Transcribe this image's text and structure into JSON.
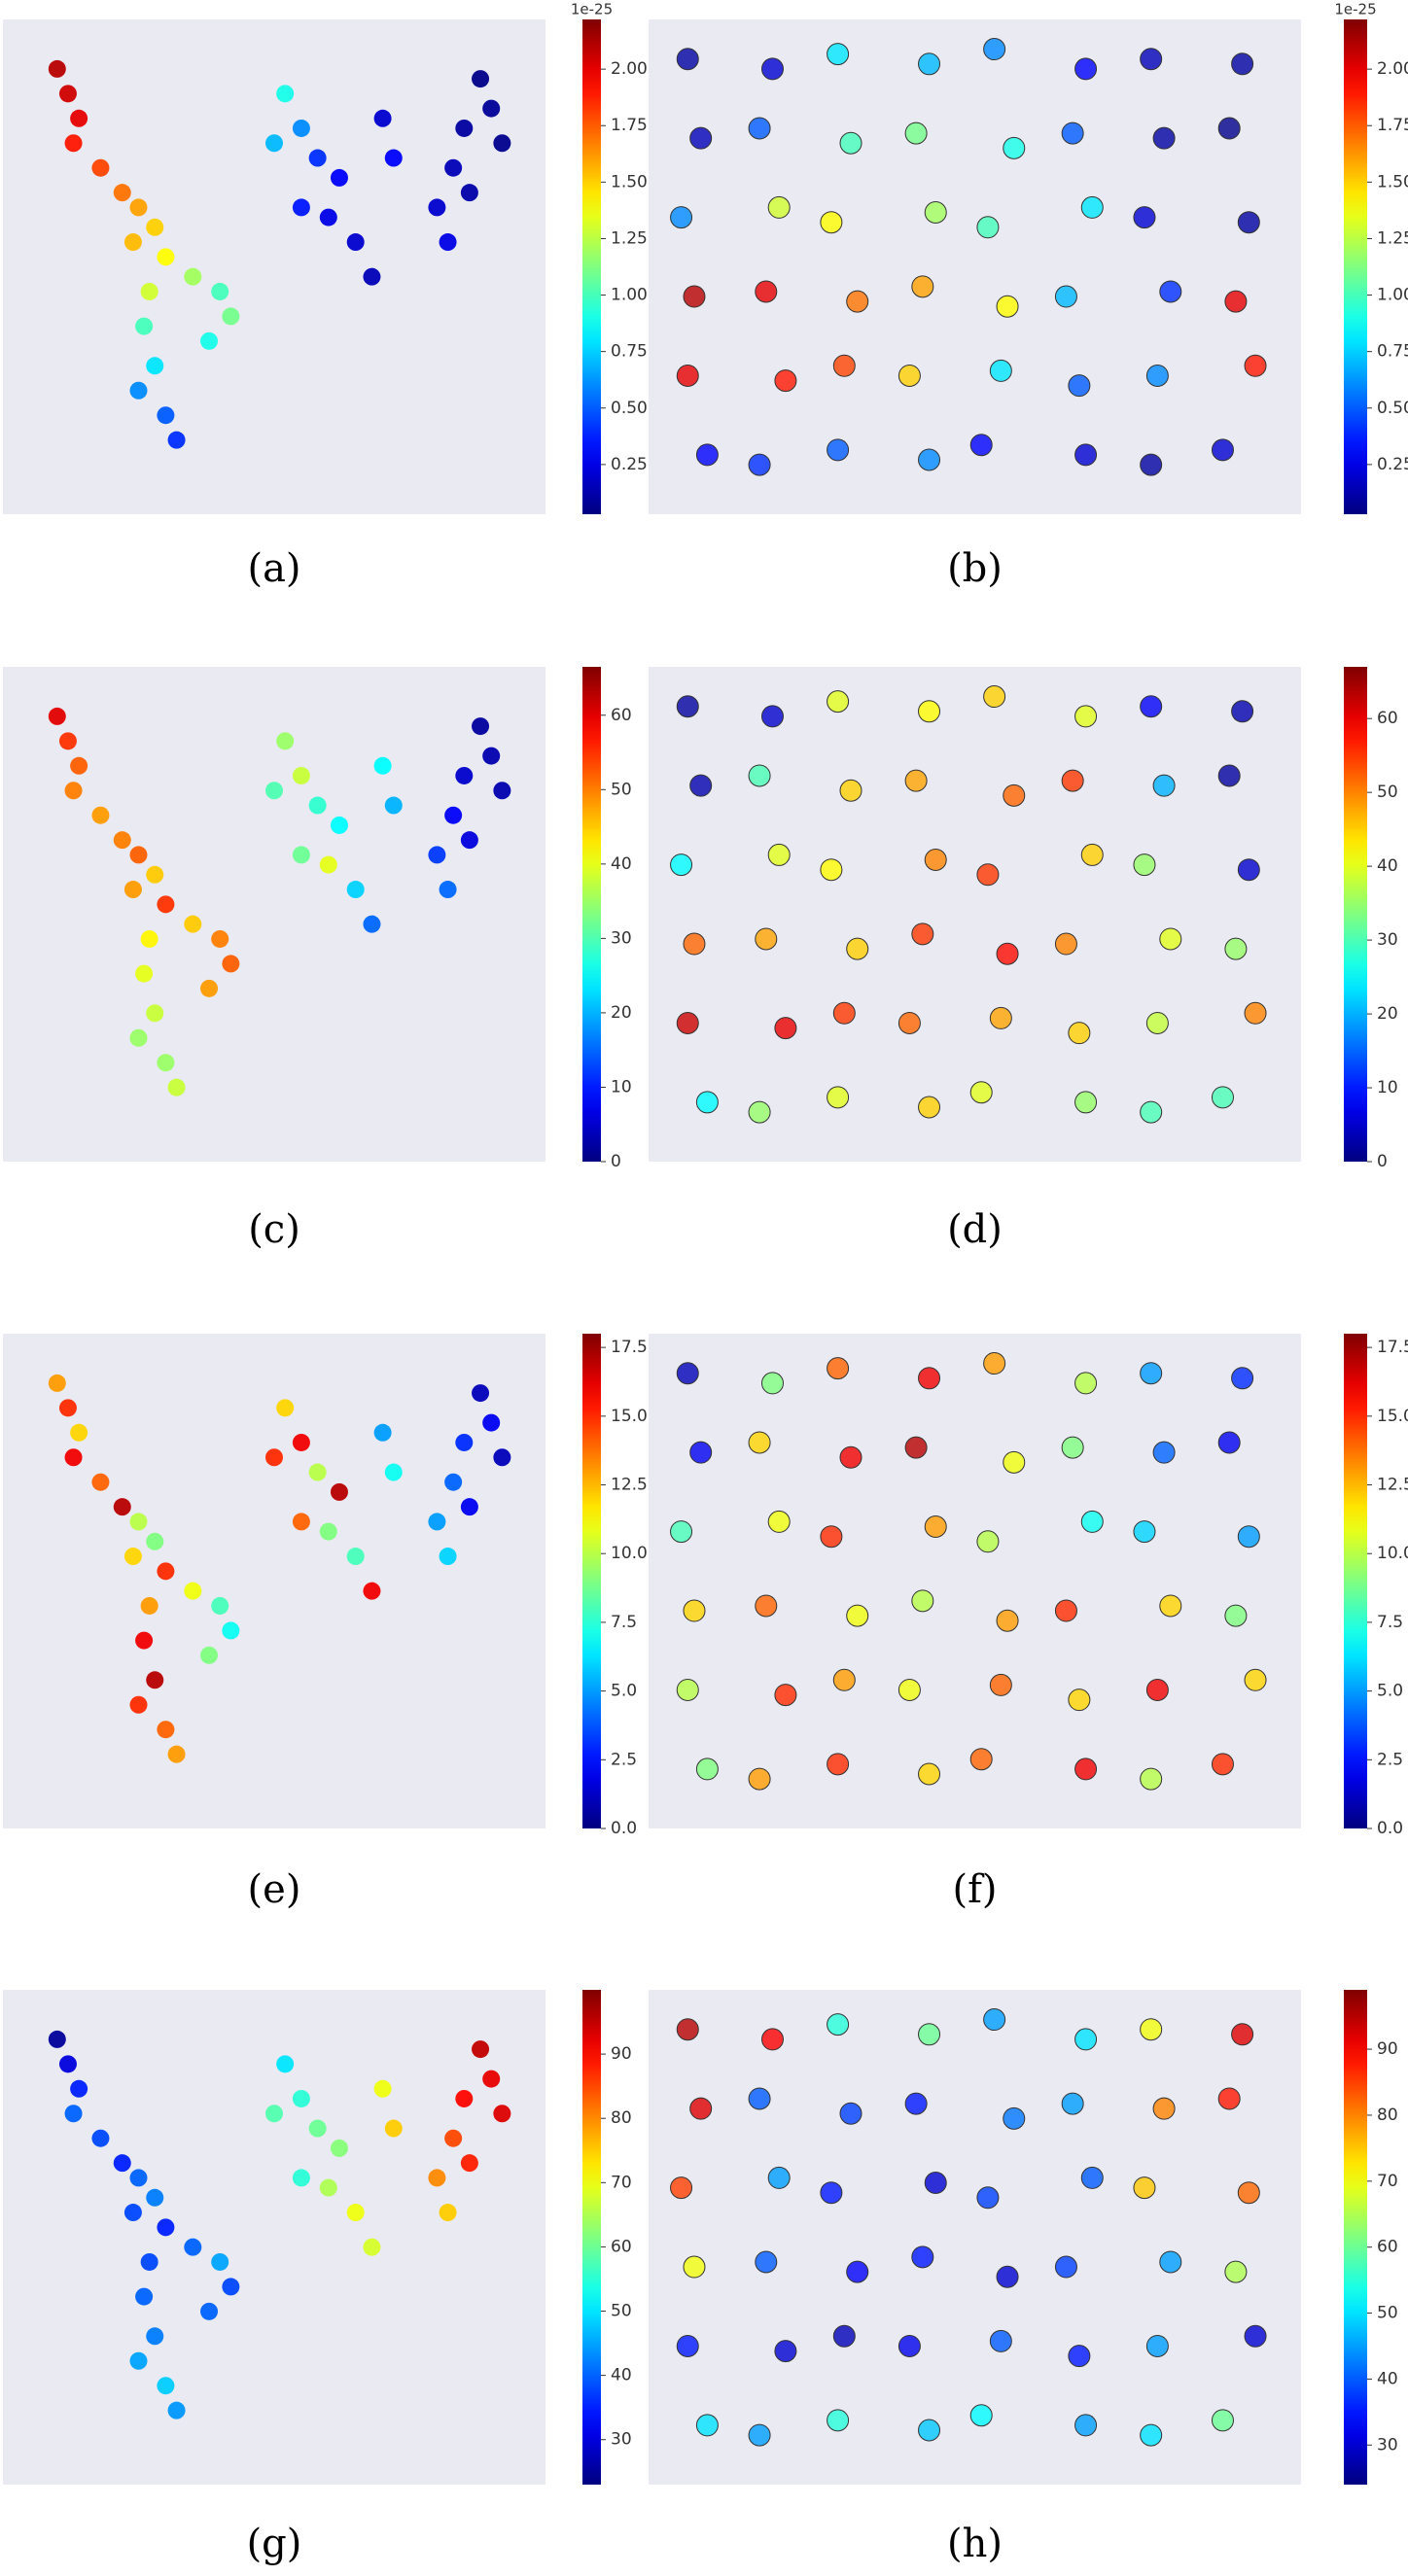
{
  "chart_data": [
    {
      "type": "scatter",
      "caption": "(a)",
      "colormap": "jet",
      "background": "#eaeaf2",
      "marker_edge": false,
      "xlim": [
        0,
        100
      ],
      "ylim": [
        0,
        100
      ],
      "x": [
        10,
        12,
        14,
        13,
        18,
        22,
        25,
        28,
        24,
        30,
        35,
        40,
        27,
        26,
        28,
        25,
        30,
        32,
        38,
        42,
        52,
        55,
        50,
        58,
        62,
        60,
        55,
        65,
        68,
        72,
        70,
        88,
        90,
        85,
        83,
        80,
        82,
        86,
        92
      ],
      "y": [
        90,
        85,
        80,
        75,
        70,
        65,
        62,
        58,
        55,
        52,
        48,
        45,
        45,
        38,
        30,
        25,
        20,
        15,
        35,
        40,
        85,
        78,
        75,
        72,
        68,
        60,
        62,
        55,
        48,
        72,
        80,
        88,
        82,
        78,
        70,
        62,
        55,
        65,
        75
      ],
      "values": [
        2.1e-25,
        2.05e-25,
        2e-25,
        1.9e-25,
        1.8e-25,
        1.7e-25,
        1.6e-25,
        1.5e-25,
        1.55e-25,
        1.4e-25,
        1.2e-25,
        1e-25,
        1.3e-25,
        1e-25,
        8e-26,
        6e-26,
        5e-26,
        4e-26,
        9e-26,
        1.1e-25,
        9e-26,
        6e-26,
        7e-26,
        4e-26,
        3e-26,
        2.5e-26,
        3.5e-26,
        2e-26,
        1.5e-26,
        3e-26,
        2e-26,
        5e-27,
        8e-27,
        1e-26,
        1.5e-26,
        2e-26,
        2.5e-26,
        1.2e-26,
        6e-27
      ],
      "clim": [
        3e-27,
        2.22e-25
      ],
      "offset_label": "1e-25",
      "cticks": [
        {
          "value": 2.5e-26,
          "label": "0.25"
        },
        {
          "value": 5e-26,
          "label": "0.50"
        },
        {
          "value": 7.5e-26,
          "label": "0.75"
        },
        {
          "value": 1e-25,
          "label": "1.00"
        },
        {
          "value": 1.25e-25,
          "label": "1.25"
        },
        {
          "value": 1.5e-25,
          "label": "1.50"
        },
        {
          "value": 1.75e-25,
          "label": "1.75"
        },
        {
          "value": 2e-25,
          "label": "2.00"
        }
      ]
    },
    {
      "type": "scatter",
      "caption": "(b)",
      "colormap": "jet",
      "background": "#eaeaf2",
      "marker_edge": true,
      "xlim": [
        0,
        100
      ],
      "ylim": [
        0,
        100
      ],
      "x": [
        6,
        19,
        29,
        43,
        53,
        67,
        77,
        91,
        8,
        17,
        31,
        41,
        56,
        65,
        79,
        89,
        5,
        20,
        28,
        44,
        52,
        68,
        76,
        92,
        7,
        18,
        32,
        42,
        55,
        64,
        80,
        90,
        6,
        21,
        30,
        40,
        54,
        66,
        78,
        93,
        9,
        17,
        29,
        43,
        51,
        67,
        77,
        88
      ],
      "y": [
        92,
        90,
        93,
        91,
        94,
        90,
        92,
        91,
        76,
        78,
        75,
        77,
        74,
        77,
        76,
        78,
        60,
        62,
        59,
        61,
        58,
        62,
        60,
        59,
        44,
        45,
        43,
        46,
        42,
        44,
        45,
        43,
        28,
        27,
        30,
        28,
        29,
        26,
        28,
        30,
        12,
        10,
        13,
        11,
        14,
        12,
        10,
        13
      ],
      "values": [
        1e-26,
        2e-26,
        8e-26,
        7e-26,
        6e-26,
        3e-26,
        1.5e-26,
        1e-26,
        1.5e-26,
        5e-26,
        1e-25,
        1.1e-25,
        9e-26,
        5e-26,
        1e-26,
        5e-27,
        6e-26,
        1.3e-25,
        1.4e-25,
        1.2e-25,
        1e-25,
        8e-26,
        2e-26,
        1e-26,
        2.1e-25,
        2e-25,
        1.7e-25,
        1.6e-25,
        1.4e-25,
        7e-26,
        4e-26,
        2e-25,
        2e-25,
        1.9e-25,
        1.8e-25,
        1.5e-25,
        8e-26,
        5e-26,
        6e-26,
        1.9e-25,
        3e-26,
        4e-26,
        5e-26,
        6e-26,
        3e-26,
        2e-26,
        1e-26,
        2e-26
      ],
      "clim": [
        3e-27,
        2.22e-25
      ],
      "offset_label": "1e-25",
      "cticks": [
        {
          "value": 2.5e-26,
          "label": "0.25"
        },
        {
          "value": 5e-26,
          "label": "0.50"
        },
        {
          "value": 7.5e-26,
          "label": "0.75"
        },
        {
          "value": 1e-25,
          "label": "1.00"
        },
        {
          "value": 1.25e-25,
          "label": "1.25"
        },
        {
          "value": 1.5e-25,
          "label": "1.50"
        },
        {
          "value": 1.75e-25,
          "label": "1.75"
        },
        {
          "value": 2e-25,
          "label": "2.00"
        }
      ]
    },
    {
      "type": "scatter",
      "caption": "(c)",
      "colormap": "jet",
      "background": "#eaeaf2",
      "marker_edge": false,
      "xlim": [
        0,
        100
      ],
      "ylim": [
        0,
        100
      ],
      "x": [
        10,
        12,
        14,
        13,
        18,
        22,
        25,
        28,
        24,
        30,
        35,
        40,
        27,
        26,
        28,
        25,
        30,
        32,
        38,
        42,
        52,
        55,
        50,
        58,
        62,
        60,
        55,
        65,
        68,
        72,
        70,
        88,
        90,
        85,
        83,
        80,
        82,
        86,
        92
      ],
      "y": [
        90,
        85,
        80,
        75,
        70,
        65,
        62,
        58,
        55,
        52,
        48,
        45,
        45,
        38,
        30,
        25,
        20,
        15,
        35,
        40,
        85,
        78,
        75,
        72,
        68,
        60,
        62,
        55,
        48,
        72,
        80,
        88,
        82,
        78,
        70,
        62,
        55,
        65,
        75
      ],
      "values": [
        60,
        55,
        52,
        50,
        48,
        50,
        52,
        45,
        48,
        55,
        45,
        50,
        42,
        40,
        38,
        35,
        35,
        38,
        48,
        52,
        35,
        38,
        30,
        28,
        25,
        40,
        32,
        22,
        15,
        20,
        25,
        2,
        3,
        5,
        8,
        12,
        15,
        6,
        3
      ],
      "clim": [
        0,
        66.5
      ],
      "cticks": [
        0,
        10,
        20,
        30,
        40,
        50,
        60
      ]
    },
    {
      "type": "scatter",
      "caption": "(d)",
      "colormap": "jet",
      "background": "#eaeaf2",
      "marker_edge": true,
      "xlim": [
        0,
        100
      ],
      "ylim": [
        0,
        100
      ],
      "x": [
        6,
        19,
        29,
        43,
        53,
        67,
        77,
        91,
        8,
        17,
        31,
        41,
        56,
        65,
        79,
        89,
        5,
        20,
        28,
        44,
        52,
        68,
        76,
        92,
        7,
        18,
        32,
        42,
        55,
        64,
        80,
        90,
        6,
        21,
        30,
        40,
        54,
        66,
        78,
        93,
        9,
        17,
        29,
        43,
        51,
        67,
        77,
        88
      ],
      "y": [
        92,
        90,
        93,
        91,
        94,
        90,
        92,
        91,
        76,
        78,
        75,
        77,
        74,
        77,
        76,
        78,
        60,
        62,
        59,
        61,
        58,
        62,
        60,
        59,
        44,
        45,
        43,
        46,
        42,
        44,
        45,
        43,
        28,
        27,
        30,
        28,
        29,
        26,
        28,
        30,
        12,
        10,
        13,
        11,
        14,
        12,
        10,
        13
      ],
      "values": [
        2,
        5,
        40,
        42,
        45,
        40,
        8,
        3,
        3,
        30,
        45,
        48,
        52,
        55,
        20,
        2,
        25,
        40,
        42,
        50,
        55,
        45,
        35,
        5,
        52,
        48,
        45,
        55,
        58,
        50,
        40,
        35,
        62,
        60,
        55,
        52,
        48,
        45,
        38,
        50,
        25,
        35,
        40,
        45,
        40,
        35,
        30,
        30
      ],
      "clim": [
        0,
        67
      ],
      "cticks": [
        0,
        10,
        20,
        30,
        40,
        50,
        60
      ]
    },
    {
      "type": "scatter",
      "caption": "(e)",
      "colormap": "jet",
      "background": "#eaeaf2",
      "marker_edge": false,
      "xlim": [
        0,
        100
      ],
      "ylim": [
        0,
        100
      ],
      "x": [
        10,
        12,
        14,
        13,
        18,
        22,
        25,
        28,
        24,
        30,
        35,
        40,
        27,
        26,
        28,
        25,
        30,
        32,
        38,
        42,
        52,
        55,
        50,
        58,
        62,
        60,
        55,
        65,
        68,
        72,
        70,
        88,
        90,
        85,
        83,
        80,
        82,
        86,
        92
      ],
      "y": [
        90,
        85,
        80,
        75,
        70,
        65,
        62,
        58,
        55,
        52,
        48,
        45,
        45,
        38,
        30,
        25,
        20,
        15,
        35,
        40,
        85,
        78,
        75,
        72,
        68,
        60,
        62,
        55,
        48,
        72,
        80,
        88,
        82,
        78,
        70,
        62,
        55,
        65,
        75
      ],
      "values": [
        13,
        15,
        12,
        16,
        14,
        17,
        10,
        9,
        12,
        15,
        11,
        8,
        13,
        16,
        17,
        15,
        14,
        13,
        9,
        7,
        12,
        16,
        15,
        10,
        17,
        9,
        14,
        8,
        16,
        7,
        5,
        1,
        2,
        3,
        4,
        5,
        6,
        2,
        1
      ],
      "clim": [
        0,
        18
      ],
      "cticks": [
        {
          "value": 0,
          "label": "0.0"
        },
        2.5,
        {
          "value": 5,
          "label": "5.0"
        },
        7.5,
        {
          "value": 10,
          "label": "10.0"
        },
        12.5,
        {
          "value": 15,
          "label": "15.0"
        },
        17.5
      ]
    },
    {
      "type": "scatter",
      "caption": "(f)",
      "colormap": "jet",
      "background": "#eaeaf2",
      "marker_edge": true,
      "xlim": [
        0,
        100
      ],
      "ylim": [
        0,
        100
      ],
      "x": [
        6,
        19,
        29,
        43,
        53,
        67,
        77,
        91,
        8,
        17,
        31,
        41,
        56,
        65,
        79,
        89,
        5,
        20,
        28,
        44,
        52,
        68,
        76,
        92,
        7,
        18,
        32,
        42,
        55,
        64,
        80,
        90,
        6,
        21,
        30,
        40,
        54,
        66,
        78,
        93,
        9,
        17,
        29,
        43,
        51,
        67,
        77,
        88
      ],
      "y": [
        92,
        90,
        93,
        91,
        94,
        90,
        92,
        91,
        76,
        78,
        75,
        77,
        74,
        77,
        76,
        78,
        60,
        62,
        59,
        61,
        58,
        62,
        60,
        59,
        44,
        45,
        43,
        46,
        42,
        44,
        45,
        43,
        28,
        27,
        30,
        28,
        29,
        26,
        28,
        30,
        12,
        10,
        13,
        11,
        14,
        12,
        10,
        13
      ],
      "values": [
        1,
        9,
        14,
        16,
        13,
        10,
        5,
        3,
        2,
        12,
        16,
        17,
        11,
        9,
        4,
        2,
        8,
        11,
        15,
        13,
        10,
        7,
        6,
        5,
        12,
        14,
        11,
        10,
        13,
        15,
        12,
        9,
        10,
        15,
        13,
        11,
        14,
        12,
        16,
        12,
        9,
        13,
        15,
        12,
        14,
        16,
        10,
        15
      ],
      "clim": [
        0,
        18
      ],
      "cticks": [
        {
          "value": 0,
          "label": "0.0"
        },
        2.5,
        {
          "value": 5,
          "label": "5.0"
        },
        7.5,
        {
          "value": 10,
          "label": "10.0"
        },
        12.5,
        {
          "value": 15,
          "label": "15.0"
        },
        17.5
      ]
    },
    {
      "type": "scatter",
      "caption": "(g)",
      "colormap": "jet",
      "background": "#eaeaf2",
      "marker_edge": false,
      "xlim": [
        0,
        100
      ],
      "ylim": [
        0,
        100
      ],
      "x": [
        10,
        12,
        14,
        13,
        18,
        22,
        25,
        28,
        24,
        30,
        35,
        40,
        27,
        26,
        28,
        25,
        30,
        32,
        38,
        42,
        52,
        55,
        50,
        58,
        62,
        60,
        55,
        65,
        68,
        72,
        70,
        88,
        90,
        85,
        83,
        80,
        82,
        86,
        92
      ],
      "y": [
        90,
        85,
        80,
        75,
        70,
        65,
        62,
        58,
        55,
        52,
        48,
        45,
        45,
        38,
        30,
        25,
        20,
        15,
        35,
        40,
        85,
        78,
        75,
        72,
        68,
        60,
        62,
        55,
        48,
        72,
        80,
        88,
        82,
        78,
        70,
        62,
        55,
        65,
        75
      ],
      "values": [
        25,
        30,
        35,
        40,
        38,
        35,
        40,
        42,
        38,
        35,
        40,
        45,
        38,
        40,
        42,
        45,
        48,
        44,
        40,
        38,
        50,
        55,
        58,
        60,
        62,
        65,
        55,
        70,
        68,
        75,
        70,
        95,
        92,
        90,
        85,
        80,
        75,
        88,
        93
      ],
      "clim": [
        23,
        100
      ],
      "cticks": [
        30,
        40,
        50,
        60,
        70,
        80,
        90
      ]
    },
    {
      "type": "scatter",
      "caption": "(h)",
      "colormap": "jet",
      "background": "#eaeaf2",
      "marker_edge": true,
      "xlim": [
        0,
        100
      ],
      "ylim": [
        0,
        100
      ],
      "x": [
        6,
        19,
        29,
        43,
        53,
        67,
        77,
        91,
        8,
        17,
        31,
        41,
        56,
        65,
        79,
        89,
        5,
        20,
        28,
        44,
        52,
        68,
        76,
        92,
        7,
        18,
        32,
        42,
        55,
        64,
        80,
        90,
        6,
        21,
        30,
        40,
        54,
        66,
        78,
        93,
        9,
        17,
        29,
        43,
        51,
        67,
        77,
        88
      ],
      "y": [
        92,
        90,
        93,
        91,
        94,
        90,
        92,
        91,
        76,
        78,
        75,
        77,
        74,
        77,
        76,
        78,
        60,
        62,
        59,
        61,
        58,
        62,
        60,
        59,
        44,
        45,
        43,
        46,
        42,
        44,
        45,
        43,
        28,
        27,
        30,
        28,
        29,
        26,
        28,
        30,
        12,
        10,
        13,
        11,
        14,
        12,
        10,
        13
      ],
      "values": [
        95,
        90,
        55,
        60,
        45,
        50,
        70,
        92,
        92,
        40,
        38,
        35,
        42,
        45,
        80,
        88,
        85,
        45,
        35,
        30,
        38,
        40,
        75,
        82,
        70,
        40,
        33,
        35,
        30,
        38,
        45,
        65,
        35,
        30,
        28,
        32,
        40,
        35,
        45,
        30,
        50,
        45,
        55,
        48,
        52,
        45,
        50,
        60
      ],
      "clim": [
        24,
        99
      ],
      "cticks": [
        30,
        40,
        50,
        60,
        70,
        80,
        90
      ]
    }
  ]
}
